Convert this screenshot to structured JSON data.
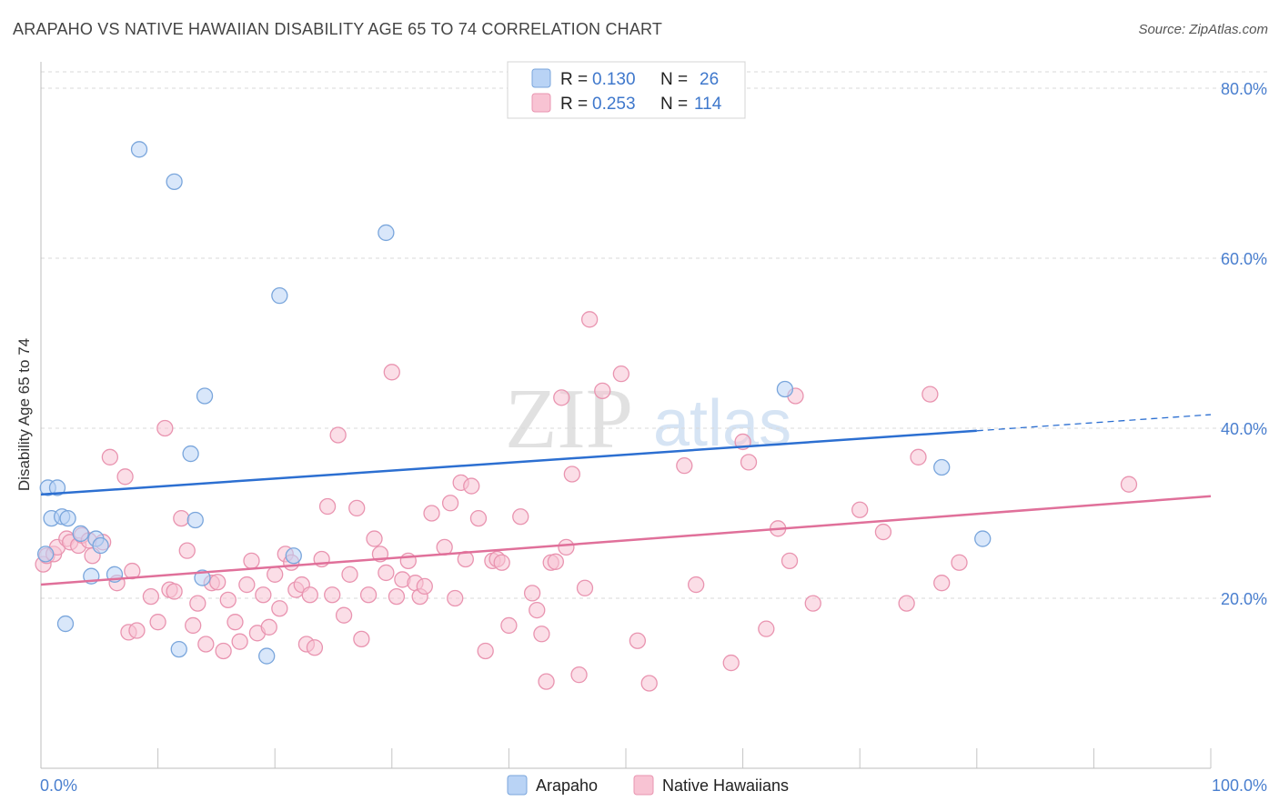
{
  "header": {
    "title": "ARAPAHO VS NATIVE HAWAIIAN DISABILITY AGE 65 TO 74 CORRELATION CHART",
    "source": "Source: ZipAtlas.com"
  },
  "watermark": {
    "zip": "ZIP",
    "atlas": "atlas"
  },
  "colors": {
    "arapaho_fill": "#b9d3f5",
    "arapaho_stroke": "#7aa6dc",
    "arapaho_line": "#2c6fd1",
    "hawaiian_fill": "#f8c3d3",
    "hawaiian_stroke": "#e994b0",
    "hawaiian_line": "#e0709a",
    "axis_text": "#4a7fcf",
    "grid": "#d9d9d9"
  },
  "legend": {
    "rows": [
      {
        "r_label": "R =",
        "r_value": "0.130",
        "n_label": "N =",
        "n_value": "26"
      },
      {
        "r_label": "R =",
        "r_value": "0.253",
        "n_label": "N =",
        "n_value": "114"
      }
    ]
  },
  "chart_data": {
    "type": "scatter",
    "title": "ARAPAHO VS NATIVE HAWAIIAN DISABILITY AGE 65 TO 74 CORRELATION CHART",
    "xlabel": "",
    "ylabel": "Disability Age 65 to 74",
    "xlim": [
      0,
      100
    ],
    "ylim": [
      0,
      82
    ],
    "x_tick_labels": [
      "0.0%",
      "100.0%"
    ],
    "y_ticks": [
      20,
      40,
      60,
      80
    ],
    "y_tick_labels": [
      "20.0%",
      "40.0%",
      "60.0%",
      "80.0%"
    ],
    "grid": true,
    "legend_position": "top-center",
    "series": [
      {
        "name": "Arapaho",
        "R": 0.13,
        "N": 26,
        "trend": {
          "x0": 0,
          "y0": 32.2,
          "x1": 80,
          "y1": 39.7,
          "dash_to_x": 100,
          "dash_to_y": 41.6
        },
        "points": [
          [
            0.4,
            25.2
          ],
          [
            0.6,
            33.0
          ],
          [
            0.9,
            29.4
          ],
          [
            1.4,
            33.0
          ],
          [
            1.8,
            29.6
          ],
          [
            2.1,
            17.0
          ],
          [
            2.3,
            29.4
          ],
          [
            3.4,
            27.6
          ],
          [
            4.3,
            22.6
          ],
          [
            4.7,
            27.0
          ],
          [
            5.1,
            26.2
          ],
          [
            6.3,
            22.8
          ],
          [
            8.4,
            72.8
          ],
          [
            11.4,
            69.0
          ],
          [
            11.8,
            14.0
          ],
          [
            12.8,
            37.0
          ],
          [
            13.2,
            29.2
          ],
          [
            13.8,
            22.4
          ],
          [
            14.0,
            43.8
          ],
          [
            19.3,
            13.2
          ],
          [
            20.4,
            55.6
          ],
          [
            21.6,
            25.0
          ],
          [
            29.5,
            63.0
          ],
          [
            63.6,
            44.6
          ],
          [
            77.0,
            35.4
          ],
          [
            80.5,
            27.0
          ]
        ]
      },
      {
        "name": "Native Hawaiians",
        "R": 0.253,
        "N": 114,
        "trend": {
          "x0": 0,
          "y0": 21.6,
          "x1": 100,
          "y1": 32.0
        },
        "points": [
          [
            0.2,
            24.0
          ],
          [
            0.5,
            25.0
          ],
          [
            1.1,
            25.2
          ],
          [
            1.4,
            26.0
          ],
          [
            2.2,
            27.0
          ],
          [
            2.5,
            26.6
          ],
          [
            3.2,
            26.2
          ],
          [
            3.5,
            27.4
          ],
          [
            4.1,
            26.8
          ],
          [
            4.4,
            25.0
          ],
          [
            5.3,
            26.6
          ],
          [
            5.9,
            36.6
          ],
          [
            6.5,
            21.8
          ],
          [
            7.2,
            34.3
          ],
          [
            7.5,
            16.0
          ],
          [
            7.8,
            23.2
          ],
          [
            8.2,
            16.2
          ],
          [
            9.4,
            20.2
          ],
          [
            10.0,
            17.2
          ],
          [
            10.6,
            40.0
          ],
          [
            11.0,
            21.0
          ],
          [
            11.4,
            20.8
          ],
          [
            12.0,
            29.4
          ],
          [
            12.5,
            25.6
          ],
          [
            13.0,
            16.8
          ],
          [
            13.4,
            19.4
          ],
          [
            14.1,
            14.6
          ],
          [
            14.6,
            21.8
          ],
          [
            15.1,
            21.9
          ],
          [
            15.6,
            13.8
          ],
          [
            16.0,
            19.8
          ],
          [
            16.6,
            17.2
          ],
          [
            17.0,
            14.9
          ],
          [
            17.6,
            21.6
          ],
          [
            18.0,
            24.4
          ],
          [
            18.5,
            15.9
          ],
          [
            19.0,
            20.4
          ],
          [
            19.5,
            16.6
          ],
          [
            20.0,
            22.8
          ],
          [
            20.4,
            18.8
          ],
          [
            20.9,
            25.2
          ],
          [
            21.4,
            24.2
          ],
          [
            21.8,
            21.0
          ],
          [
            22.3,
            21.6
          ],
          [
            22.7,
            14.6
          ],
          [
            23.0,
            20.4
          ],
          [
            23.4,
            14.2
          ],
          [
            24.0,
            24.6
          ],
          [
            24.5,
            30.8
          ],
          [
            24.9,
            20.4
          ],
          [
            25.4,
            39.2
          ],
          [
            25.9,
            18.0
          ],
          [
            26.4,
            22.8
          ],
          [
            27.0,
            30.6
          ],
          [
            27.4,
            15.2
          ],
          [
            28.0,
            20.4
          ],
          [
            28.5,
            27.0
          ],
          [
            29.0,
            25.2
          ],
          [
            29.5,
            23.0
          ],
          [
            30.0,
            46.6
          ],
          [
            30.4,
            20.2
          ],
          [
            30.9,
            22.2
          ],
          [
            31.4,
            24.4
          ],
          [
            32.0,
            21.8
          ],
          [
            32.4,
            20.2
          ],
          [
            32.8,
            21.4
          ],
          [
            33.4,
            30.0
          ],
          [
            34.5,
            26.0
          ],
          [
            35.0,
            31.2
          ],
          [
            35.4,
            20.0
          ],
          [
            35.9,
            33.6
          ],
          [
            36.3,
            24.6
          ],
          [
            36.8,
            33.2
          ],
          [
            37.4,
            29.4
          ],
          [
            38.0,
            13.8
          ],
          [
            38.6,
            24.4
          ],
          [
            39.0,
            24.6
          ],
          [
            39.4,
            24.2
          ],
          [
            40.0,
            16.8
          ],
          [
            41.0,
            29.6
          ],
          [
            42.0,
            20.6
          ],
          [
            42.4,
            18.6
          ],
          [
            42.8,
            15.8
          ],
          [
            43.2,
            10.2
          ],
          [
            43.6,
            24.2
          ],
          [
            44.0,
            24.3
          ],
          [
            44.5,
            43.6
          ],
          [
            44.9,
            26.0
          ],
          [
            45.4,
            34.6
          ],
          [
            46.0,
            11.0
          ],
          [
            46.5,
            21.2
          ],
          [
            46.9,
            52.8
          ],
          [
            48.0,
            44.4
          ],
          [
            49.6,
            46.4
          ],
          [
            51.0,
            15.0
          ],
          [
            52.0,
            10.0
          ],
          [
            55.0,
            35.6
          ],
          [
            56.0,
            21.6
          ],
          [
            59.0,
            12.4
          ],
          [
            60.0,
            38.4
          ],
          [
            60.5,
            36.0
          ],
          [
            62.0,
            16.4
          ],
          [
            63.0,
            28.2
          ],
          [
            64.0,
            24.4
          ],
          [
            64.5,
            43.8
          ],
          [
            66.0,
            19.4
          ],
          [
            70.0,
            30.4
          ],
          [
            72.0,
            27.8
          ],
          [
            74.0,
            19.4
          ],
          [
            75.0,
            36.6
          ],
          [
            76.0,
            44.0
          ],
          [
            77.0,
            21.8
          ],
          [
            93.0,
            33.4
          ],
          [
            78.5,
            24.2
          ]
        ]
      }
    ]
  }
}
